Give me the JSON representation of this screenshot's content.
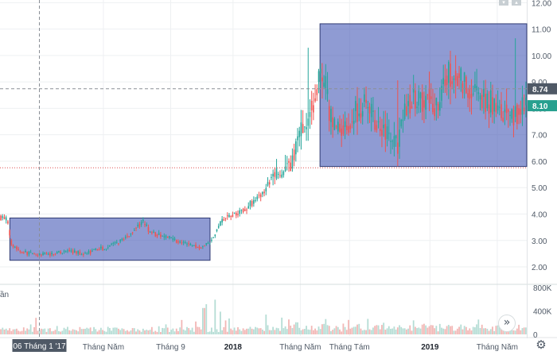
{
  "chart_data": {
    "type": "candlestick",
    "price_axis": {
      "ticks": [
        "2.00",
        "3.00",
        "4.00",
        "5.00",
        "6.00",
        "7.00",
        "8.00",
        "9.00",
        "10.00",
        "11.00",
        "12.00"
      ],
      "ylim": [
        1.4,
        12.1
      ]
    },
    "volume_axis": {
      "ticks": [
        "0",
        "400K",
        "800K"
      ],
      "ylim": [
        0,
        800000
      ]
    },
    "time_axis": {
      "labels": [
        {
          "text": "Tháng Năm",
          "t": 4.1,
          "bold": false
        },
        {
          "text": "Tháng 9",
          "t": 8.2,
          "bold": false
        },
        {
          "text": "2018",
          "t": 12.0,
          "bold": true
        },
        {
          "text": "Tháng Năm",
          "t": 16.1,
          "bold": false
        },
        {
          "text": "Tháng Tám",
          "t": 19.1,
          "bold": false
        },
        {
          "text": "2019",
          "t": 24.0,
          "bold": true
        },
        {
          "text": "Tháng Năm",
          "t": 28.1,
          "bold": false
        }
      ],
      "xlim": [
        -2.2,
        29.9
      ]
    },
    "price_path": [
      [
        -2.2,
        3.9
      ],
      [
        -1.8,
        3.8
      ],
      [
        -1.5,
        2.9
      ],
      [
        -1.0,
        2.6
      ],
      [
        0.0,
        2.45
      ],
      [
        1.0,
        2.5
      ],
      [
        2.0,
        2.6
      ],
      [
        3.0,
        2.5
      ],
      [
        4.0,
        2.7
      ],
      [
        5.0,
        2.9
      ],
      [
        6.0,
        3.4
      ],
      [
        6.5,
        3.7
      ],
      [
        7.0,
        3.3
      ],
      [
        8.0,
        3.1
      ],
      [
        9.0,
        2.9
      ],
      [
        10.0,
        2.75
      ],
      [
        10.6,
        2.9
      ],
      [
        11.0,
        3.4
      ],
      [
        11.5,
        3.9
      ],
      [
        12.5,
        4.1
      ],
      [
        13.5,
        4.6
      ],
      [
        14.0,
        5.0
      ],
      [
        14.5,
        5.6
      ],
      [
        15.0,
        5.4
      ],
      [
        15.5,
        5.9
      ],
      [
        16.0,
        6.8
      ],
      [
        16.5,
        7.6
      ],
      [
        17.0,
        8.6
      ],
      [
        17.5,
        9.2
      ],
      [
        18.0,
        7.6
      ],
      [
        18.5,
        7.2
      ],
      [
        19.0,
        7.4
      ],
      [
        19.5,
        7.9
      ],
      [
        20.0,
        8.2
      ],
      [
        20.5,
        7.6
      ],
      [
        21.0,
        7.3
      ],
      [
        21.5,
        6.9
      ],
      [
        22.0,
        6.5
      ],
      [
        22.5,
        7.8
      ],
      [
        23.0,
        8.6
      ],
      [
        23.5,
        8.2
      ],
      [
        24.0,
        8.5
      ],
      [
        24.5,
        8.0
      ],
      [
        25.0,
        9.1
      ],
      [
        25.5,
        9.6
      ],
      [
        26.0,
        8.9
      ],
      [
        26.5,
        8.6
      ],
      [
        27.0,
        8.4
      ],
      [
        27.5,
        8.2
      ],
      [
        28.0,
        8.1
      ],
      [
        28.5,
        7.9
      ],
      [
        29.0,
        7.8
      ],
      [
        29.5,
        8.0
      ],
      [
        29.9,
        8.1
      ]
    ],
    "boxes": [
      {
        "t0": -1.6,
        "t1": 10.6,
        "p0": 2.25,
        "p1": 3.85
      },
      {
        "t0": 17.3,
        "t1": 29.9,
        "p0": 5.8,
        "p1": 11.2
      }
    ],
    "price_labels": [
      {
        "text": "8.74",
        "value": 8.74,
        "dark": true
      },
      {
        "text": "8.10",
        "value": 8.1,
        "dark": false
      }
    ],
    "crosshair": {
      "label": "06 Tháng 1 '17",
      "t": 0.2,
      "price": 8.74
    },
    "support_line": 5.75,
    "volume_label": "ần"
  },
  "colors": {
    "up": "#26a69a",
    "down": "#ef5350",
    "box_fill": "#4a5eb8",
    "box_stroke": "#2f3a72",
    "support": "#e05050",
    "label_dark": "#4f5966",
    "label_green": "#27a08f",
    "axis_text": "#4f5966",
    "grid": "#eef0f2"
  },
  "icons": {
    "scroll": "double-chevron-right-icon",
    "settings": "gear-icon"
  },
  "ui": {
    "scroll_glyph": "»",
    "settings_glyph": "⚙"
  }
}
